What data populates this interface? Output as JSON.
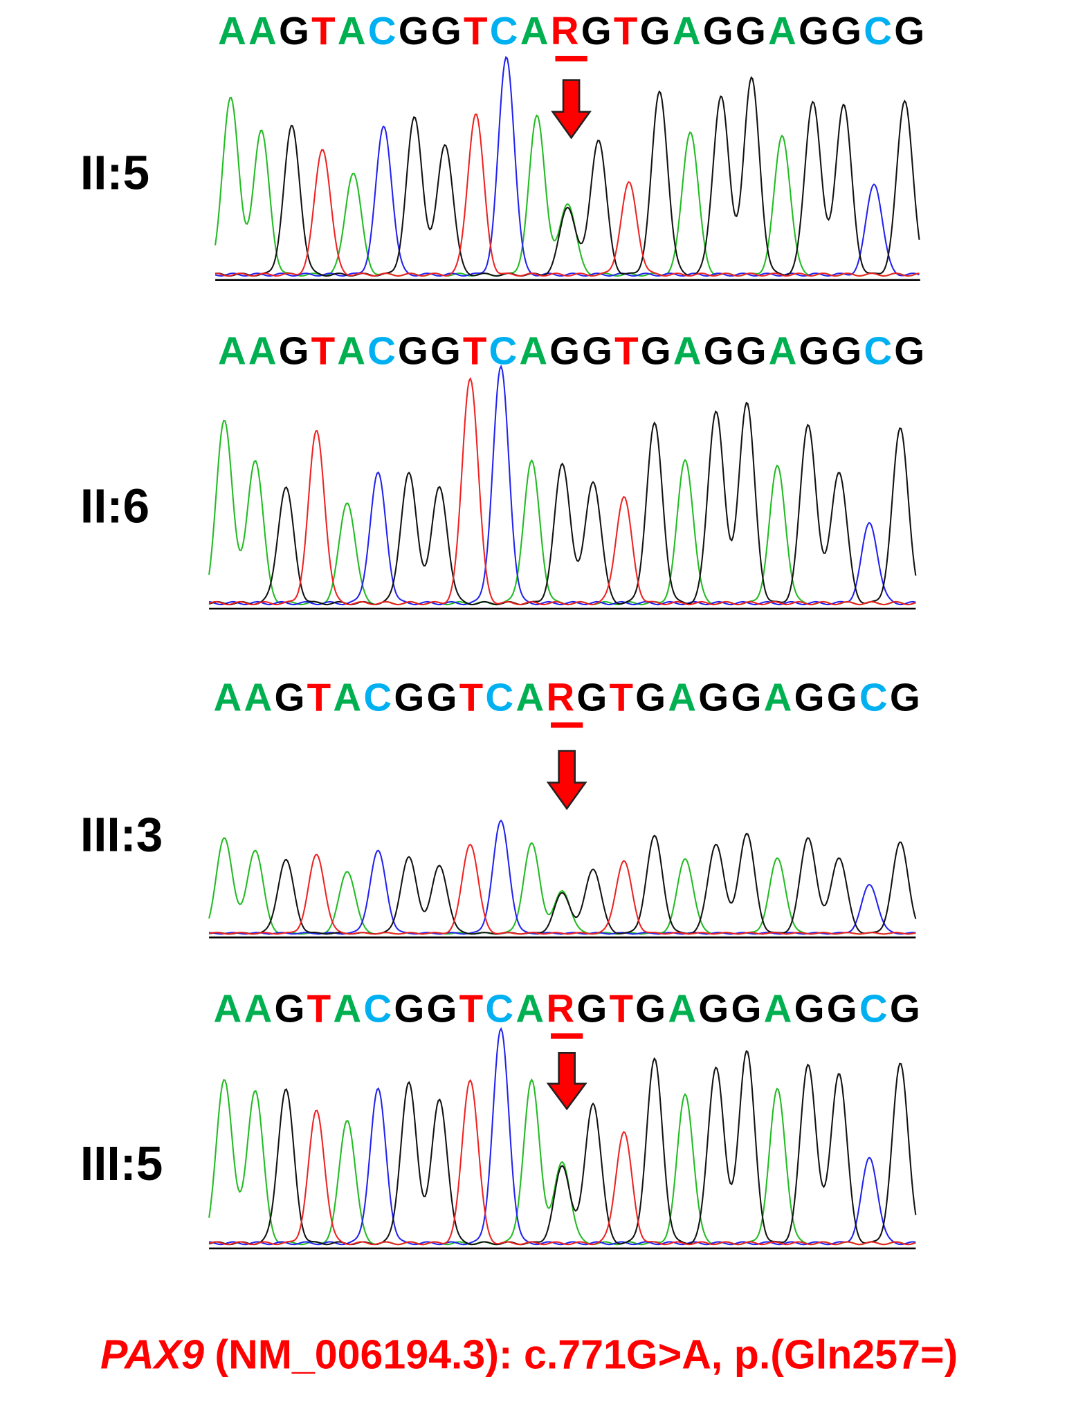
{
  "panels": [
    {
      "label": "II:5",
      "sequence": "AAGTACGGTCARGTGAGGAGGCG"
    },
    {
      "label": "II:6",
      "sequence": "AAGTACGGTCAGGTGAGGAGGCG"
    },
    {
      "label": "III:3",
      "sequence": "AAGTACGGTCARGTGAGGAGGCG"
    },
    {
      "label": "III:5",
      "sequence": "AAGTACGGTCARGTGAGGAGGCG"
    }
  ],
  "caption": {
    "gene": "PAX9",
    "text": "(NM_006194.3): c.771G>A, p.(Gln257=)"
  }
}
